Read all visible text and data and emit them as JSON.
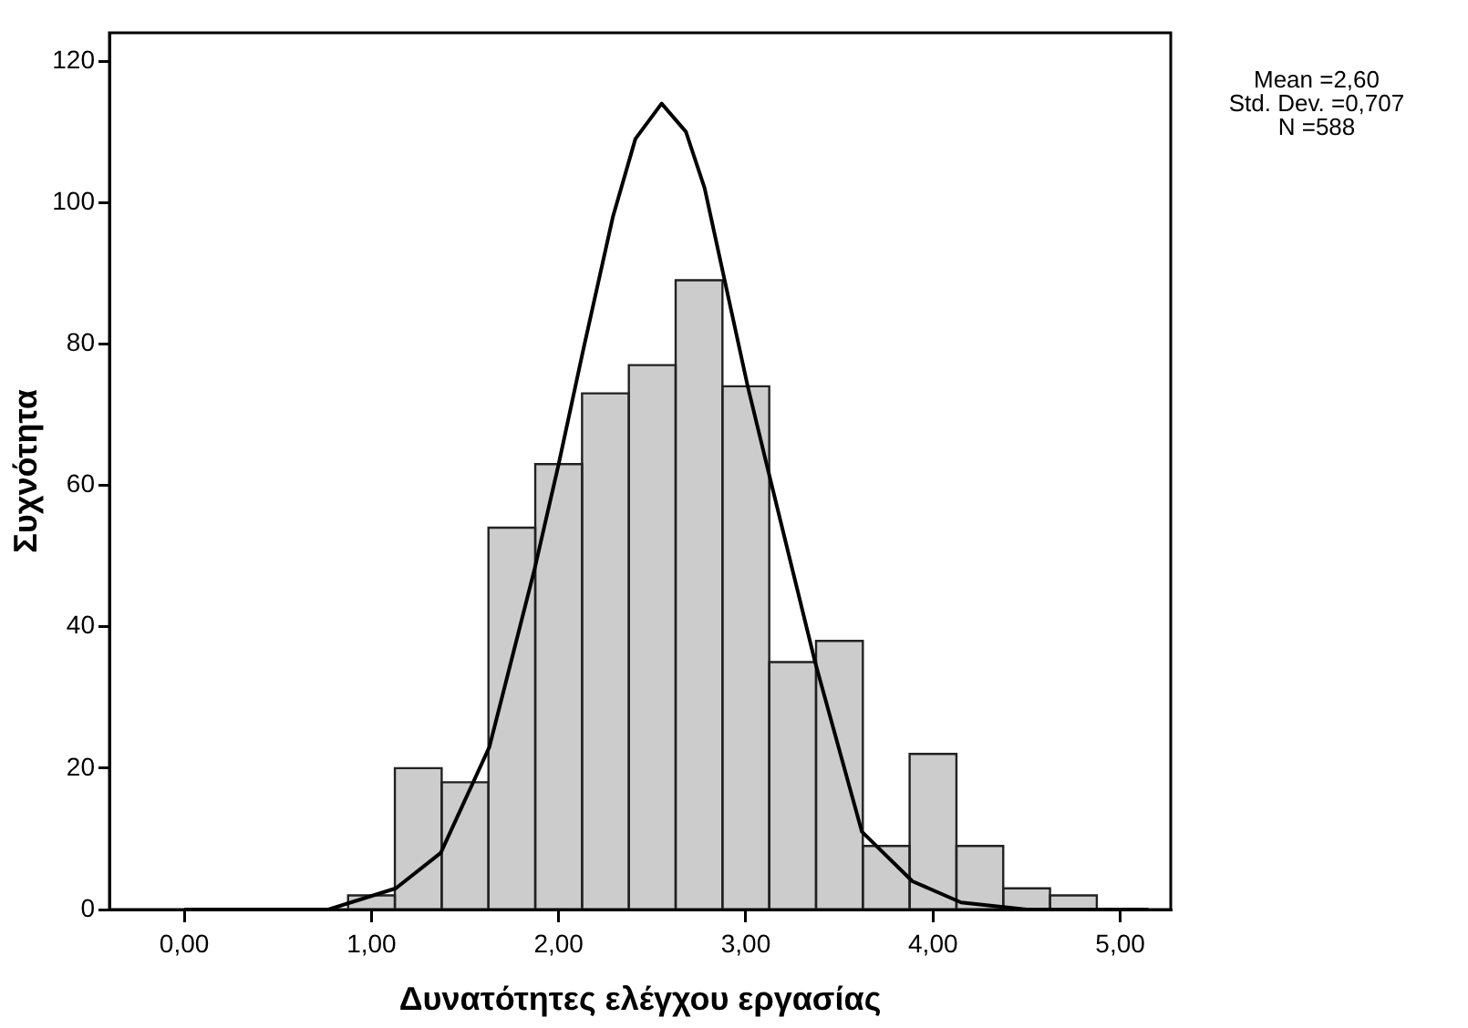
{
  "chart_data": {
    "type": "histogram",
    "xlabel": "Δυνατότητες ελέγχου εργασίας",
    "ylabel": "Συχνότητα",
    "bins": [
      0.875,
      1.125,
      1.375,
      1.625,
      1.875,
      2.125,
      2.375,
      2.625,
      2.875,
      3.125,
      3.375,
      3.625,
      3.875,
      4.125,
      4.375,
      4.625,
      4.875
    ],
    "values": [
      2,
      20,
      18,
      54,
      63,
      73,
      77,
      89,
      74,
      35,
      38,
      9,
      22,
      9,
      3,
      2
    ],
    "color": "#cccccc",
    "series": [
      {
        "type": "line",
        "color": "#000000",
        "x": [
          0,
          0.5,
          0.77,
          1.13,
          1.37,
          1.63,
          1.87,
          2.0,
          2.13,
          2.29,
          2.41,
          2.55,
          2.68,
          2.78,
          3.01,
          3.12,
          3.37,
          3.62,
          3.89,
          4.15,
          4.5,
          5.15
        ],
        "values": [
          0,
          0,
          0,
          3,
          8,
          23,
          48,
          63,
          79,
          98,
          109,
          114,
          110,
          102,
          74,
          62,
          35,
          11,
          4,
          1,
          0,
          0
        ]
      }
    ],
    "marker": "none",
    "xlim": [
      -0.4,
      5.27
    ],
    "ylim": [
      0,
      124
    ],
    "xticks": [
      {
        "value": 0,
        "label": "0,00"
      },
      {
        "value": 1,
        "label": "1,00"
      },
      {
        "value": 2,
        "label": "2,00"
      },
      {
        "value": 3,
        "label": "3,00"
      },
      {
        "value": 4,
        "label": "4,00"
      },
      {
        "value": 5,
        "label": "5,00"
      }
    ],
    "yticks": [
      0,
      20,
      40,
      60,
      80,
      100,
      120
    ],
    "grid": false,
    "legend": false,
    "annotations": [
      "Mean =2,60",
      "Std. Dev. =0,707",
      "N =588"
    ]
  }
}
